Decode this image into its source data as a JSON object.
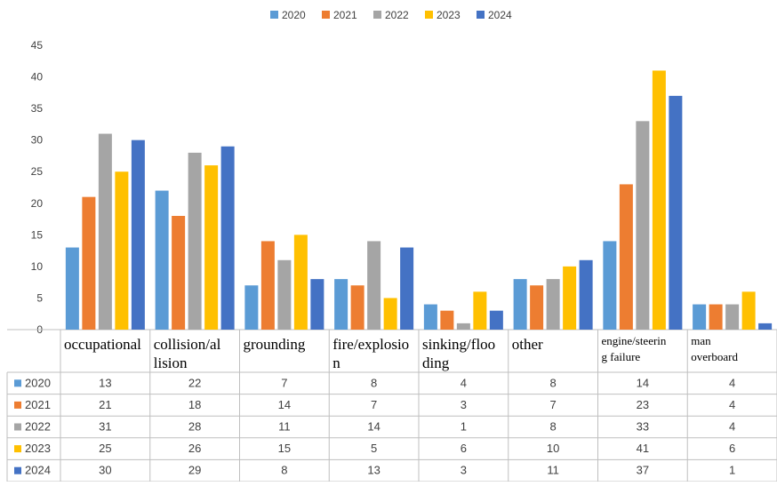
{
  "chart_data": {
    "type": "bar",
    "categories": [
      "occupational",
      "collision/allision",
      "grounding",
      "fire/explosion",
      "sinking/flooding",
      "other",
      "engine/steering failure",
      "man overboard"
    ],
    "category_lines": [
      [
        "occupational"
      ],
      [
        "collision/al",
        "lision"
      ],
      [
        "grounding"
      ],
      [
        "fire/explosio",
        "n"
      ],
      [
        "sinking/floo",
        "ding"
      ],
      [
        "other"
      ],
      [
        "engine/steerin",
        "g failure"
      ],
      [
        "man",
        "overboard"
      ]
    ],
    "series": [
      {
        "name": "2020",
        "color": "#5B9BD5",
        "values": [
          13,
          22,
          7,
          8,
          4,
          8,
          14,
          4
        ]
      },
      {
        "name": "2021",
        "color": "#ED7D31",
        "values": [
          21,
          18,
          14,
          7,
          3,
          7,
          23,
          4
        ]
      },
      {
        "name": "2022",
        "color": "#A5A5A5",
        "values": [
          31,
          28,
          11,
          14,
          1,
          8,
          33,
          4
        ]
      },
      {
        "name": "2023",
        "color": "#FFC000",
        "values": [
          25,
          26,
          15,
          5,
          6,
          10,
          41,
          6
        ]
      },
      {
        "name": "2024",
        "color": "#4472C4",
        "values": [
          30,
          29,
          8,
          13,
          3,
          11,
          37,
          1
        ]
      }
    ],
    "y_ticks": [
      0,
      5,
      10,
      15,
      20,
      25,
      30,
      35,
      40,
      45
    ],
    "ylim": [
      0,
      45
    ],
    "legend_position": "top",
    "data_table": true,
    "gridlines": false
  }
}
